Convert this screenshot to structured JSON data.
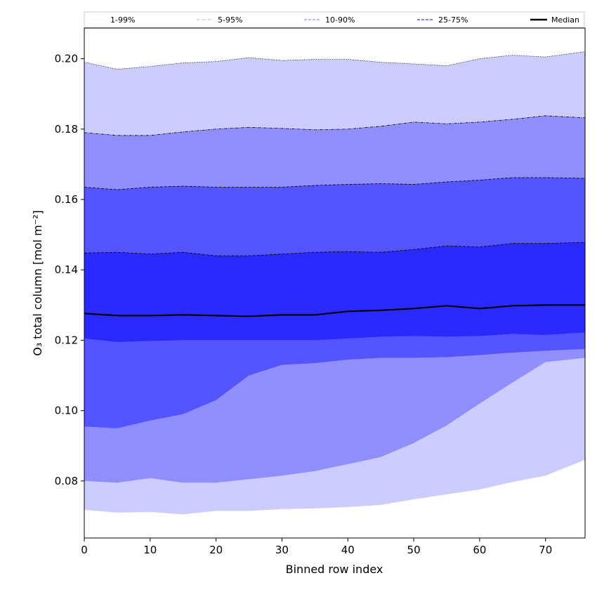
{
  "chart_data": {
    "type": "area",
    "title": "",
    "xlabel": "Binned row index",
    "ylabel": "O₃ total column [mol m⁻²]",
    "xlim": [
      0,
      76
    ],
    "ylim": [
      0.0638,
      0.2087
    ],
    "xticks": [
      0,
      10,
      20,
      30,
      40,
      50,
      60,
      70
    ],
    "xtick_labels": [
      "0",
      "10",
      "20",
      "30",
      "40",
      "50",
      "60",
      "70"
    ],
    "yticks": [
      0.08,
      0.1,
      0.12,
      0.14,
      0.16,
      0.18,
      0.2
    ],
    "ytick_labels": [
      "0.08",
      "0.10",
      "0.12",
      "0.14",
      "0.16",
      "0.18",
      "0.20"
    ],
    "legend_position": "top",
    "x": [
      0,
      5,
      10,
      15,
      20,
      25,
      30,
      35,
      40,
      45,
      50,
      55,
      60,
      65,
      70,
      76
    ],
    "series": [
      {
        "name": "1-99%",
        "color": "#ccccff",
        "line_color": "#000000",
        "line_style": "dotted",
        "lower": [
          0.0718,
          0.071,
          0.0712,
          0.0705,
          0.0715,
          0.0715,
          0.072,
          0.0722,
          0.0726,
          0.0732,
          0.0748,
          0.0762,
          0.0776,
          0.0797,
          0.0815,
          0.086
        ],
        "upper": [
          0.199,
          0.197,
          0.1978,
          0.1988,
          0.1992,
          0.2003,
          0.1995,
          0.1998,
          0.1998,
          0.199,
          0.1985,
          0.198,
          0.2,
          0.201,
          0.2005,
          0.202
        ]
      },
      {
        "name": "5-95%",
        "color": "#8f8fff",
        "line_color": "#000000",
        "line_style": "dashdot",
        "lower": [
          0.08,
          0.0795,
          0.0808,
          0.0795,
          0.0795,
          0.0805,
          0.0815,
          0.0828,
          0.0848,
          0.0868,
          0.0908,
          0.0958,
          0.102,
          0.108,
          0.1138,
          0.115
        ],
        "upper": [
          0.179,
          0.1782,
          0.1782,
          0.1792,
          0.18,
          0.1805,
          0.1802,
          0.1798,
          0.18,
          0.1808,
          0.182,
          0.1815,
          0.182,
          0.1828,
          0.1838,
          0.1832
        ]
      },
      {
        "name": "10-90%",
        "color": "#5555ff",
        "line_color": "#000000",
        "line_style": "dashed",
        "lower": [
          0.0955,
          0.095,
          0.0972,
          0.099,
          0.103,
          0.11,
          0.113,
          0.1135,
          0.1145,
          0.115,
          0.115,
          0.1152,
          0.1158,
          0.1165,
          0.117,
          0.1175
        ],
        "upper": [
          0.1635,
          0.1628,
          0.1635,
          0.1638,
          0.1635,
          0.1635,
          0.1635,
          0.164,
          0.1643,
          0.1645,
          0.1643,
          0.165,
          0.1655,
          0.1662,
          0.1662,
          0.166
        ]
      },
      {
        "name": "25-75%",
        "color": "#2a2aff",
        "line_color": "#000000",
        "line_style": "dashed",
        "lower": [
          0.1205,
          0.1195,
          0.1198,
          0.12,
          0.12,
          0.12,
          0.12,
          0.12,
          0.1205,
          0.121,
          0.1212,
          0.121,
          0.1212,
          0.1218,
          0.1215,
          0.1222
        ],
        "upper": [
          0.1448,
          0.145,
          0.1445,
          0.145,
          0.144,
          0.144,
          0.1445,
          0.145,
          0.1452,
          0.145,
          0.1458,
          0.1468,
          0.1465,
          0.1475,
          0.1475,
          0.1478
        ]
      },
      {
        "name": "Median",
        "color": "#000000",
        "values": [
          0.1276,
          0.127,
          0.127,
          0.1272,
          0.127,
          0.1268,
          0.1272,
          0.1272,
          0.1282,
          0.1285,
          0.129,
          0.1298,
          0.129,
          0.1298,
          0.13,
          0.13
        ]
      }
    ],
    "legend": [
      "1-99%",
      "5-95%",
      "10-90%",
      "25-75%",
      "Median"
    ]
  }
}
